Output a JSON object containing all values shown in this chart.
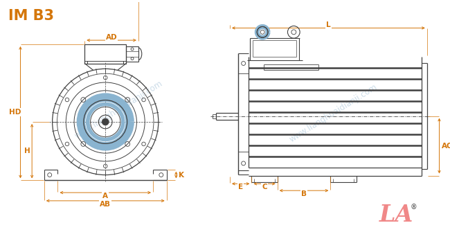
{
  "title": "IM B3",
  "title_color": "#d4760a",
  "title_fontsize": 15,
  "bg_color": "#ffffff",
  "line_color": "#404040",
  "dim_color": "#d4760a",
  "watermark_color": "#b8cfe0",
  "watermark_text1": "www.lianghuaidianji.com",
  "watermark_text2": "www.lianghuaidianji.com",
  "logo_text": "LA",
  "logo_color": "#f08888",
  "logo_reg": "®"
}
